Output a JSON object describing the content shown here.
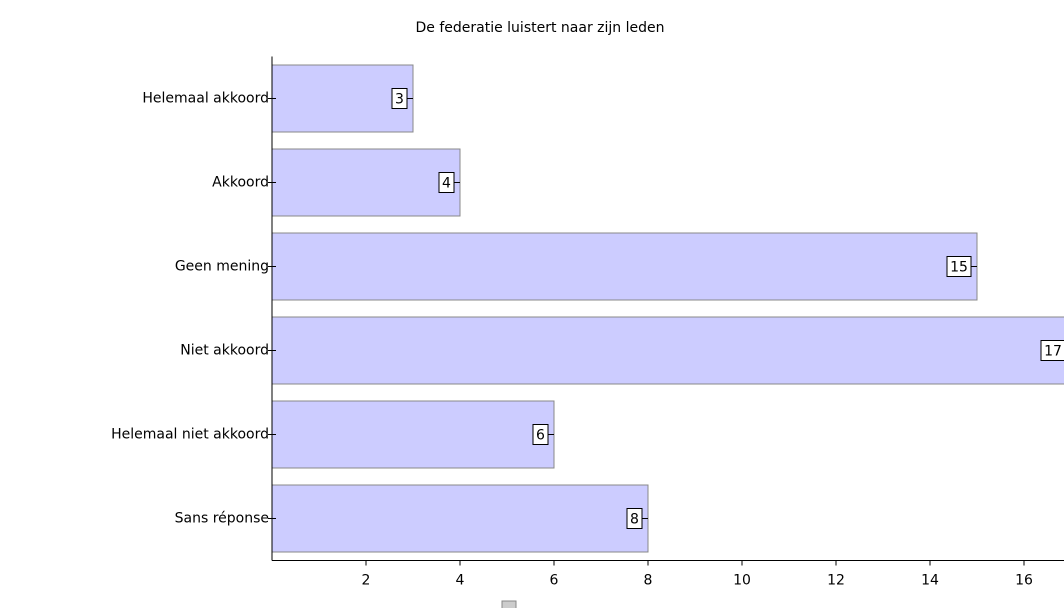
{
  "chart_data": {
    "type": "bar",
    "orientation": "horizontal",
    "title": "De federatie luistert naar zijn leden",
    "categories": [
      "Helemaal akkoord",
      "Akkoord",
      "Geen mening",
      "Niet akkoord",
      "Helemaal niet akkoord",
      "Sans réponse"
    ],
    "values": [
      3,
      4,
      15,
      17,
      6,
      8
    ],
    "color": "#ccccff",
    "xlim": [
      0,
      17
    ],
    "xticks": [
      2,
      4,
      6,
      8,
      10,
      12,
      14,
      16
    ]
  }
}
